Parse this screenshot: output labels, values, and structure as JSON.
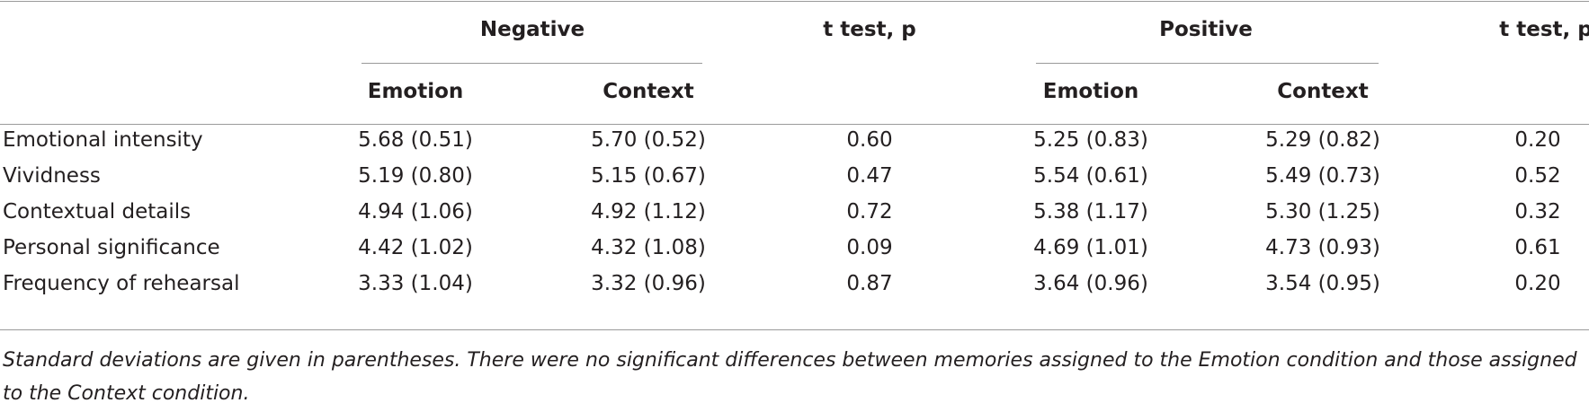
{
  "table": {
    "group_headers": [
      "Negative",
      "t test, p",
      "Positive",
      "t test, p"
    ],
    "sub_headers": [
      "Emotion",
      "Context",
      "Emotion",
      "Context"
    ],
    "rows": [
      [
        "Emotional intensity",
        "5.68 (0.51)",
        "5.70 (0.52)",
        "0.60",
        "5.25 (0.83)",
        "5.29 (0.82)",
        "0.20"
      ],
      [
        "Vividness",
        "5.19 (0.80)",
        "5.15 (0.67)",
        "0.47",
        "5.54 (0.61)",
        "5.49 (0.73)",
        "0.52"
      ],
      [
        "Contextual details",
        "4.94 (1.06)",
        "4.92 (1.12)",
        "0.72",
        "5.38 (1.17)",
        "5.30 (1.25)",
        "0.32"
      ],
      [
        "Personal significance",
        "4.42 (1.02)",
        "4.32 (1.08)",
        "0.09",
        "4.69 (1.01)",
        "4.73 (0.93)",
        "0.61"
      ],
      [
        "Frequency of rehearsal",
        "3.33 (1.04)",
        "3.32 (0.96)",
        "0.87",
        "3.64 (0.96)",
        "3.54 (0.95)",
        "0.20"
      ]
    ],
    "footnote": "Standard deviations are given in parentheses. There were no significant differences between memories assigned to the Emotion condition and those assigned to the Context condition."
  }
}
